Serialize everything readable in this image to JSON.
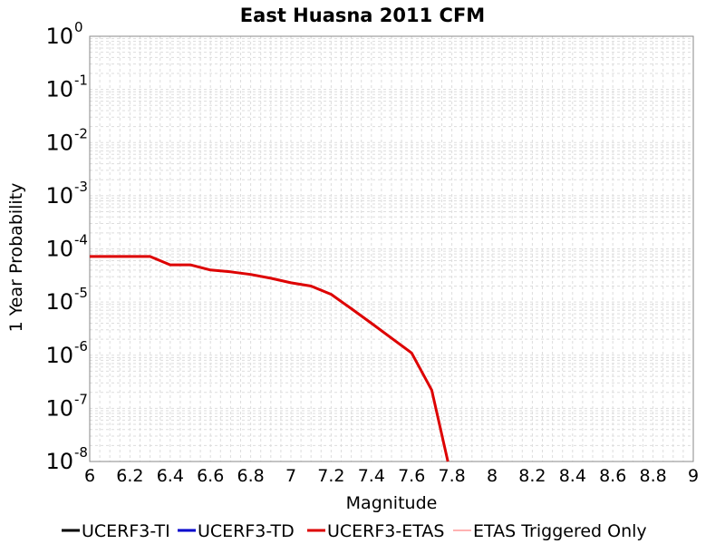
{
  "chart_data": {
    "type": "line",
    "title": "East Huasna 2011 CFM",
    "xlabel": "Magnitude",
    "ylabel": "1 Year Probability",
    "xlim": [
      6,
      9
    ],
    "ylim": [
      1e-08,
      1
    ],
    "y_scale": "log",
    "grid": true,
    "legend_position": "bottom",
    "x_ticks": [
      "6",
      "6.2",
      "6.4",
      "6.6",
      "6.8",
      "7",
      "7.2",
      "7.4",
      "7.6",
      "7.8",
      "8",
      "8.2",
      "8.4",
      "8.6",
      "8.8",
      "9"
    ],
    "y_ticks": [
      {
        "base": "10",
        "exp": "0"
      },
      {
        "base": "10",
        "exp": "-1"
      },
      {
        "base": "10",
        "exp": "-2"
      },
      {
        "base": "10",
        "exp": "-3"
      },
      {
        "base": "10",
        "exp": "-4"
      },
      {
        "base": "10",
        "exp": "-5"
      },
      {
        "base": "10",
        "exp": "-6"
      },
      {
        "base": "10",
        "exp": "-7"
      },
      {
        "base": "10",
        "exp": "-8"
      }
    ],
    "series": [
      {
        "name": "UCERF3-TI",
        "color": "#000000",
        "legend_only": true,
        "x": [],
        "y": []
      },
      {
        "name": "UCERF3-TD",
        "color": "#0000cc",
        "legend_only": true,
        "x": [],
        "y": []
      },
      {
        "name": "UCERF3-ETAS",
        "color": "#dd0000",
        "x": [
          6.0,
          6.1,
          6.2,
          6.3,
          6.4,
          6.5,
          6.6,
          6.7,
          6.8,
          6.9,
          7.0,
          7.1,
          7.2,
          7.3,
          7.4,
          7.5,
          7.6,
          7.7,
          7.78
        ],
        "y": [
          7.2e-05,
          7.2e-05,
          7.2e-05,
          7.2e-05,
          5e-05,
          5e-05,
          4e-05,
          3.7e-05,
          3.3e-05,
          2.8e-05,
          2.3e-05,
          2e-05,
          1.4e-05,
          7.5e-06,
          4e-06,
          2.1e-06,
          1.1e-06,
          2.2e-07,
          1e-08
        ]
      },
      {
        "name": "ETAS Triggered Only",
        "color": "#ff6666",
        "thin": true,
        "legend_only": true,
        "x": [],
        "y": []
      }
    ]
  }
}
